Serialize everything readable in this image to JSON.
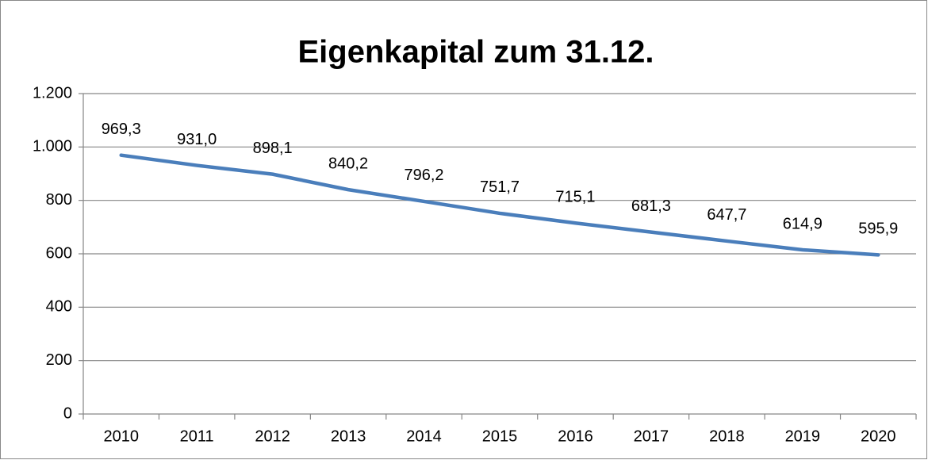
{
  "chart_data": {
    "type": "line",
    "title": "Eigenkapital zum 31.12.",
    "categories": [
      "2010",
      "2011",
      "2012",
      "2013",
      "2014",
      "2015",
      "2016",
      "2017",
      "2018",
      "2019",
      "2020"
    ],
    "values": [
      969.3,
      931.0,
      898.1,
      840.2,
      796.2,
      751.7,
      715.1,
      681.3,
      647.7,
      614.9,
      595.9
    ],
    "value_labels": [
      "969,3",
      "931,0",
      "898,1",
      "840,2",
      "796,2",
      "751,7",
      "715,1",
      "681,3",
      "647,7",
      "614,9",
      "595,9"
    ],
    "color": "#4a7ebb",
    "ylim": [
      0,
      1200
    ],
    "yticks": [
      0,
      200,
      400,
      600,
      800,
      {
        "value": 1000,
        "label": "1.000"
      },
      {
        "value": 1200,
        "label": "1.200"
      }
    ],
    "grid": true
  }
}
